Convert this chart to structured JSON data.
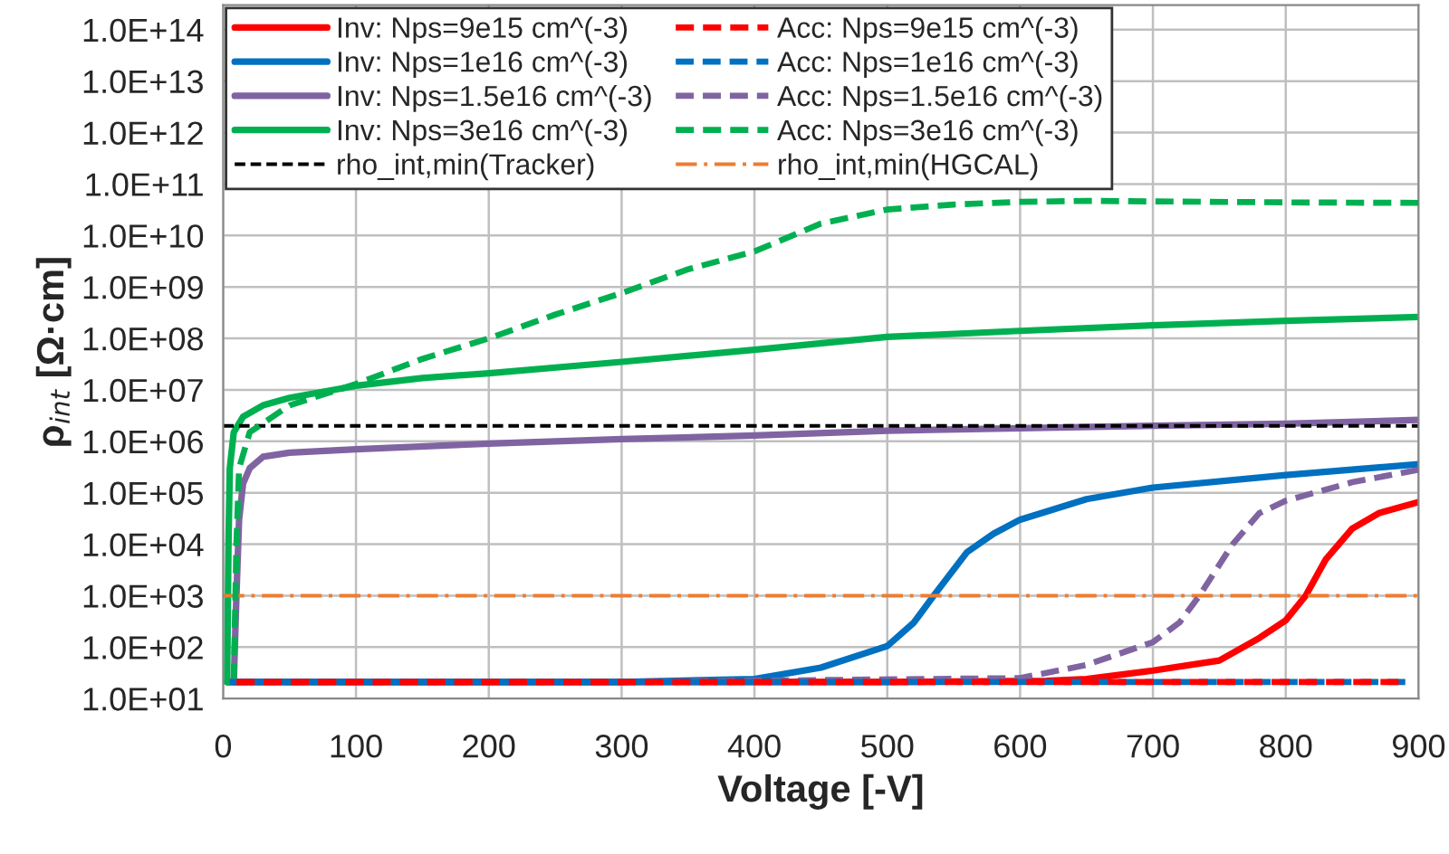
{
  "chart_data": {
    "type": "line",
    "xlabel": "Voltage [-V]",
    "ylabel": "ρ$_{int}$ [Ω·cm]",
    "log": "y",
    "grid": true,
    "legend": "top left",
    "xlim": [
      0,
      900
    ],
    "xticks": [
      0,
      100,
      200,
      300,
      400,
      500,
      600,
      700,
      800,
      900
    ],
    "ylim": [
      10,
      300000000000000.0
    ],
    "yticks": [
      {
        "value": 10.0,
        "label": "1.0E+01"
      },
      {
        "value": 100.0,
        "label": "1.0E+02"
      },
      {
        "value": 1000.0,
        "label": "1.0E+03"
      },
      {
        "value": 10000.0,
        "label": "1.0E+04"
      },
      {
        "value": 100000.0,
        "label": "1.0E+05"
      },
      {
        "value": 1000000.0,
        "label": "1.0E+06"
      },
      {
        "value": 10000000.0,
        "label": "1.0E+07"
      },
      {
        "value": 100000000.0,
        "label": "1.0E+08"
      },
      {
        "value": 1000000000.0,
        "label": "1.0E+09"
      },
      {
        "value": 10000000000.0,
        "label": "1.0E+10"
      },
      {
        "value": 100000000000.0,
        "label": "1.0E+11"
      },
      {
        "value": 1000000000000.0,
        "label": "1.0E+12"
      },
      {
        "value": 10000000000000.0,
        "label": "1.0E+13"
      },
      {
        "value": 100000000000000.0,
        "label": "1.0E+14"
      }
    ],
    "series": [
      {
        "name": "Inv: Nps=9e15 cm^(-3)",
        "color": "#ff0000",
        "line_style": "solid",
        "x": [
          3,
          100,
          300,
          500,
          620,
          650,
          700,
          750,
          780,
          800,
          815,
          830,
          850,
          870,
          900
        ],
        "values": [
          21,
          21,
          21,
          21,
          22,
          24,
          35,
          55,
          150,
          330,
          1000,
          5000,
          20000.0,
          40000.0,
          66000.0
        ]
      },
      {
        "name": "Acc: Nps=9e15 cm^(-3)",
        "color": "#ff0000",
        "line_style": "dashed",
        "x": [
          10,
          300,
          600,
          885
        ],
        "values": [
          21,
          21,
          21,
          21
        ]
      },
      {
        "name": "Inv: Nps=1e16 cm^(-3)",
        "color": "#0070c0",
        "line_style": "solid",
        "x": [
          3,
          100,
          300,
          400,
          450,
          500,
          520,
          535,
          560,
          580,
          600,
          650,
          700,
          800,
          900
        ],
        "values": [
          21,
          21,
          21,
          24,
          40,
          105,
          300,
          1000,
          7000,
          16000.0,
          30000.0,
          75000.0,
          126000.0,
          220000.0,
          360000.0
        ]
      },
      {
        "name": "Acc: Nps=1e16 cm^(-3)",
        "color": "#0070c0",
        "line_style": "dashed",
        "x": [
          5,
          300,
          600,
          890
        ],
        "values": [
          21,
          21,
          21,
          21
        ]
      },
      {
        "name": "Inv: Nps=1.5e16 cm^(-3)",
        "color": "#8064a2",
        "line_style": "solid",
        "x": [
          8,
          10,
          12,
          15,
          20,
          30,
          50,
          100,
          200,
          300,
          400,
          500,
          600,
          700,
          800,
          900
        ],
        "values": [
          21,
          1000,
          30000.0,
          150000.0,
          300000.0,
          500000.0,
          600000.0,
          700000.0,
          900000.0,
          1100000.0,
          1300000.0,
          1600000.0,
          1800000.0,
          2000000.0,
          2200000.0,
          2600000.0
        ]
      },
      {
        "name": "Acc: Nps=1.5e16 cm^(-3)",
        "color": "#8064a2",
        "line_style": "dashed",
        "x": [
          5,
          300,
          600,
          650,
          700,
          720,
          735,
          760,
          780,
          800,
          850,
          900
        ],
        "values": [
          21,
          21,
          25,
          45,
          125,
          300,
          1000,
          10000.0,
          40000.0,
          70000.0,
          160000.0,
          280000.0
        ]
      },
      {
        "name": "Inv: Nps=3e16 cm^(-3)",
        "color": "#00b050",
        "line_style": "solid",
        "x": [
          3,
          4,
          5,
          8,
          15,
          30,
          50,
          100,
          150,
          200,
          300,
          400,
          500,
          600,
          700,
          800,
          900
        ],
        "values": [
          21,
          10000.0,
          300000.0,
          1500000.0,
          3000000.0,
          5000000.0,
          7000000.0,
          12000000.0,
          17000000.0,
          21000000.0,
          35000000.0,
          60000000.0,
          107000000.0,
          140000000.0,
          180000000.0,
          220000000.0,
          260000000.0
        ]
      },
      {
        "name": "Acc: Nps=3e16 cm^(-3)",
        "color": "#00b050",
        "line_style": "dashed",
        "x": [
          8,
          10,
          12,
          20,
          50,
          100,
          150,
          200,
          250,
          300,
          350,
          400,
          450,
          500,
          550,
          600,
          650,
          700,
          800,
          900
        ],
        "values": [
          21,
          10000.0,
          300000.0,
          1500000.0,
          5000000.0,
          13000000.0,
          40000000.0,
          100000000.0,
          290000000.0,
          760000000.0,
          2200000000.0,
          4900000000.0,
          17000000000.0,
          32000000000.0,
          40000000000.0,
          45000000000.0,
          47000000000.0,
          46000000000.0,
          44000000000.0,
          43000000000.0
        ]
      }
    ],
    "ref_lines": [
      {
        "axis": "y",
        "value": 2000000.0,
        "label": "rho_int,min(Tracker)",
        "color": "#000000",
        "line_style": "dashed"
      },
      {
        "axis": "y",
        "value": 1000,
        "label": "rho_int,min(HGCAL)",
        "color": "#ed7d31",
        "line_style": "dashdot"
      }
    ]
  }
}
